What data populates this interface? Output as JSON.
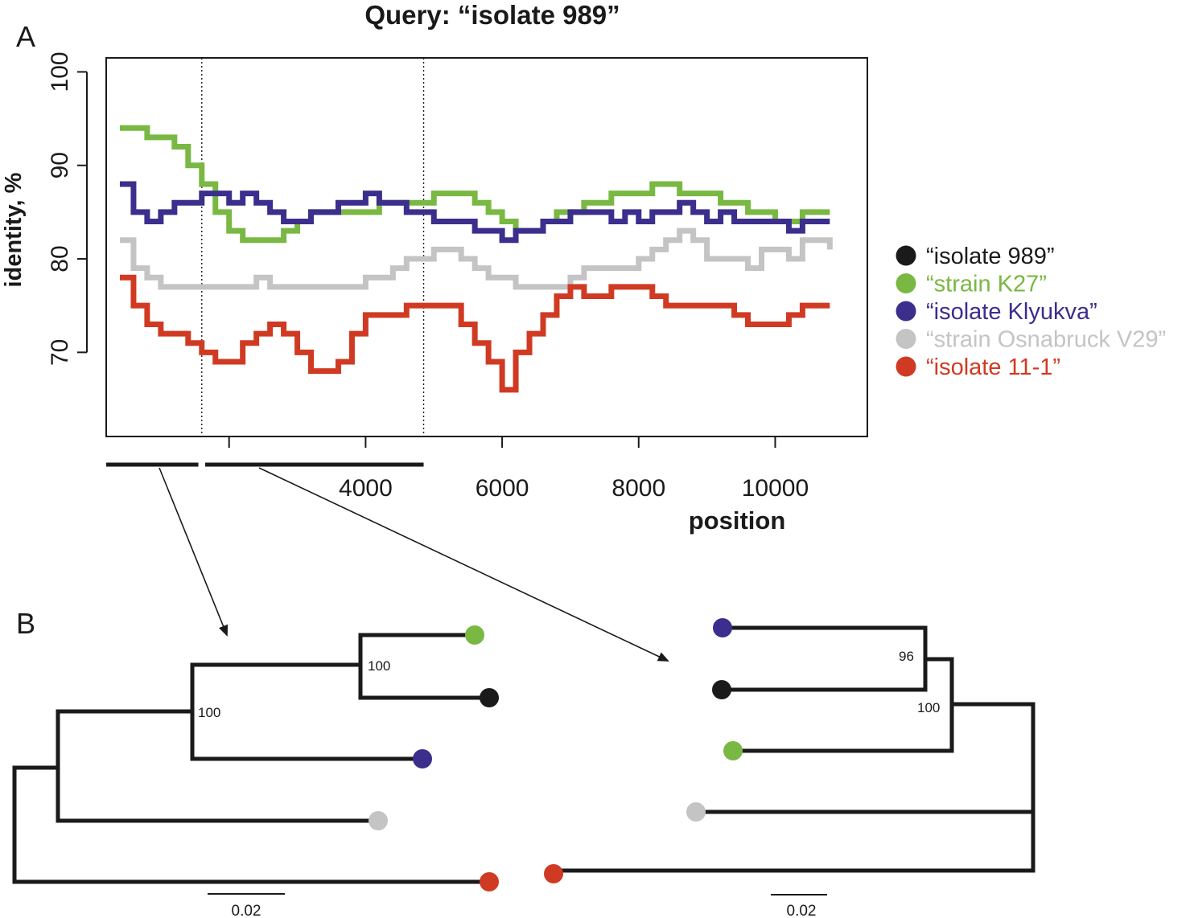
{
  "panel_a_label": "A",
  "panel_b_label": "B",
  "colors": {
    "isolate989": "#1a1a1a",
    "K27": "#79b842",
    "Klyukva": "#3b2e8c",
    "Osnabruck": "#c4c4c4",
    "isolate11": "#d03a23"
  },
  "chart_data": {
    "type": "line",
    "title": "Query: “isolate 989”",
    "xlabel": "position",
    "ylabel": "identity, %",
    "xlim": [
      200,
      11350
    ],
    "ylim": [
      61,
      101.5
    ],
    "x_ticks": [
      4000,
      6000,
      8000,
      10000
    ],
    "y_ticks": [
      70,
      80,
      90,
      100
    ],
    "breakpoints": [
      1600,
      4850
    ],
    "segments": [
      [
        200,
        1550
      ],
      [
        1650,
        4850
      ]
    ],
    "legend": [
      {
        "label": "“isolate 989”",
        "color_key": "isolate989"
      },
      {
        "label": "“strain K27”",
        "color_key": "K27"
      },
      {
        "label": "“isolate Klyukva”",
        "color_key": "Klyukva"
      },
      {
        "label": "“strain Osnabruck V29”",
        "color_key": "Osnabruck"
      },
      {
        "label": "“isolate 11-1”",
        "color_key": "isolate11"
      }
    ],
    "series": [
      {
        "name": "“strain K27”",
        "color_key": "K27",
        "x": [
          400,
          600,
          800,
          1000,
          1200,
          1400,
          1600,
          1800,
          2000,
          2200,
          2400,
          2600,
          2800,
          3000,
          3200,
          3400,
          3600,
          3800,
          4000,
          4200,
          4400,
          4600,
          4800,
          5000,
          5200,
          5400,
          5600,
          5800,
          6000,
          6200,
          6400,
          6600,
          6800,
          7000,
          7200,
          7400,
          7600,
          7800,
          8000,
          8200,
          8400,
          8600,
          8800,
          9000,
          9200,
          9400,
          9600,
          9800,
          10000,
          10200,
          10400,
          10800
        ],
        "y": [
          94,
          94,
          93,
          93,
          92,
          90,
          88,
          85,
          83,
          82,
          82,
          82,
          83,
          84,
          85,
          85,
          85,
          85,
          85,
          86,
          86,
          86,
          86,
          87,
          87,
          87,
          86,
          85,
          84,
          83,
          83,
          84,
          85,
          85,
          86,
          86,
          87,
          87,
          87,
          88,
          88,
          87,
          87,
          87,
          86,
          86,
          85,
          85,
          84,
          84,
          85,
          85
        ]
      },
      {
        "name": "“isolate Klyukva”",
        "color_key": "Klyukva",
        "x": [
          400,
          600,
          800,
          1000,
          1200,
          1400,
          1600,
          1800,
          2000,
          2200,
          2400,
          2600,
          2800,
          3000,
          3200,
          3400,
          3600,
          3800,
          4000,
          4200,
          4400,
          4600,
          4800,
          5000,
          5200,
          5400,
          5600,
          5800,
          6000,
          6200,
          6400,
          6600,
          6800,
          7000,
          7200,
          7400,
          7600,
          7800,
          8000,
          8200,
          8400,
          8600,
          8800,
          9000,
          9200,
          9400,
          9600,
          9800,
          10000,
          10200,
          10400,
          10800
        ],
        "y": [
          88,
          85,
          84,
          85,
          86,
          86,
          87,
          87,
          86,
          87,
          86,
          85,
          84,
          84,
          85,
          85,
          86,
          86,
          87,
          86,
          86,
          85,
          85,
          84,
          84,
          84,
          83,
          83,
          82,
          83,
          83,
          84,
          84,
          85,
          85,
          85,
          84,
          85,
          84,
          85,
          85,
          86,
          85,
          84,
          85,
          84,
          84,
          84,
          84,
          83,
          84,
          84
        ]
      },
      {
        "name": "“strain Osnabruck V29”",
        "color_key": "Osnabruck",
        "x": [
          400,
          600,
          800,
          1000,
          1200,
          1400,
          1600,
          1800,
          2000,
          2200,
          2400,
          2600,
          2800,
          3000,
          3200,
          3400,
          3600,
          3800,
          4000,
          4200,
          4400,
          4600,
          4800,
          5000,
          5200,
          5400,
          5600,
          5800,
          6000,
          6200,
          6400,
          6600,
          6800,
          7000,
          7200,
          7400,
          7600,
          7800,
          8000,
          8200,
          8400,
          8600,
          8800,
          9000,
          9200,
          9400,
          9600,
          9800,
          10000,
          10200,
          10400,
          10800
        ],
        "y": [
          82,
          79,
          78,
          77,
          77,
          77,
          77,
          77,
          77,
          77,
          78,
          77,
          77,
          77,
          77,
          77,
          77,
          77,
          78,
          78,
          79,
          80,
          80,
          81,
          81,
          80,
          79,
          78,
          78,
          77,
          77,
          77,
          77,
          78,
          79,
          79,
          79,
          79,
          80,
          81,
          82,
          83,
          82,
          80,
          80,
          80,
          79,
          81,
          81,
          80,
          82,
          81
        ]
      },
      {
        "name": "“isolate 11-1”",
        "color_key": "isolate11",
        "x": [
          400,
          600,
          800,
          1000,
          1200,
          1400,
          1600,
          1800,
          2000,
          2200,
          2400,
          2600,
          2800,
          3000,
          3200,
          3400,
          3600,
          3800,
          4000,
          4200,
          4400,
          4600,
          4800,
          5000,
          5200,
          5400,
          5600,
          5800,
          6000,
          6200,
          6400,
          6600,
          6800,
          7000,
          7200,
          7400,
          7600,
          7800,
          8000,
          8200,
          8400,
          8600,
          8800,
          9000,
          9200,
          9400,
          9600,
          9800,
          10000,
          10200,
          10400,
          10800
        ],
        "y": [
          78,
          75,
          73,
          72,
          72,
          71,
          70,
          69,
          69,
          71,
          72,
          73,
          72,
          70,
          68,
          68,
          69,
          72,
          74,
          74,
          74,
          75,
          75,
          75,
          75,
          73,
          71,
          69,
          66,
          70,
          72,
          74,
          76,
          77,
          76,
          76,
          77,
          77,
          77,
          76,
          75,
          75,
          75,
          75,
          75,
          74,
          73,
          73,
          73,
          74,
          75,
          75
        ]
      }
    ]
  },
  "tree_left": {
    "bootstrap": [
      "100",
      "100"
    ],
    "scale_label": "0.02",
    "leaves": [
      "K27",
      "isolate989",
      "Klyukva",
      "Osnabruck",
      "isolate11"
    ]
  },
  "tree_right": {
    "bootstrap": [
      "96",
      "100"
    ],
    "scale_label": "0.02",
    "leaves": [
      "Klyukva",
      "isolate989",
      "K27",
      "Osnabruck",
      "isolate11"
    ]
  }
}
